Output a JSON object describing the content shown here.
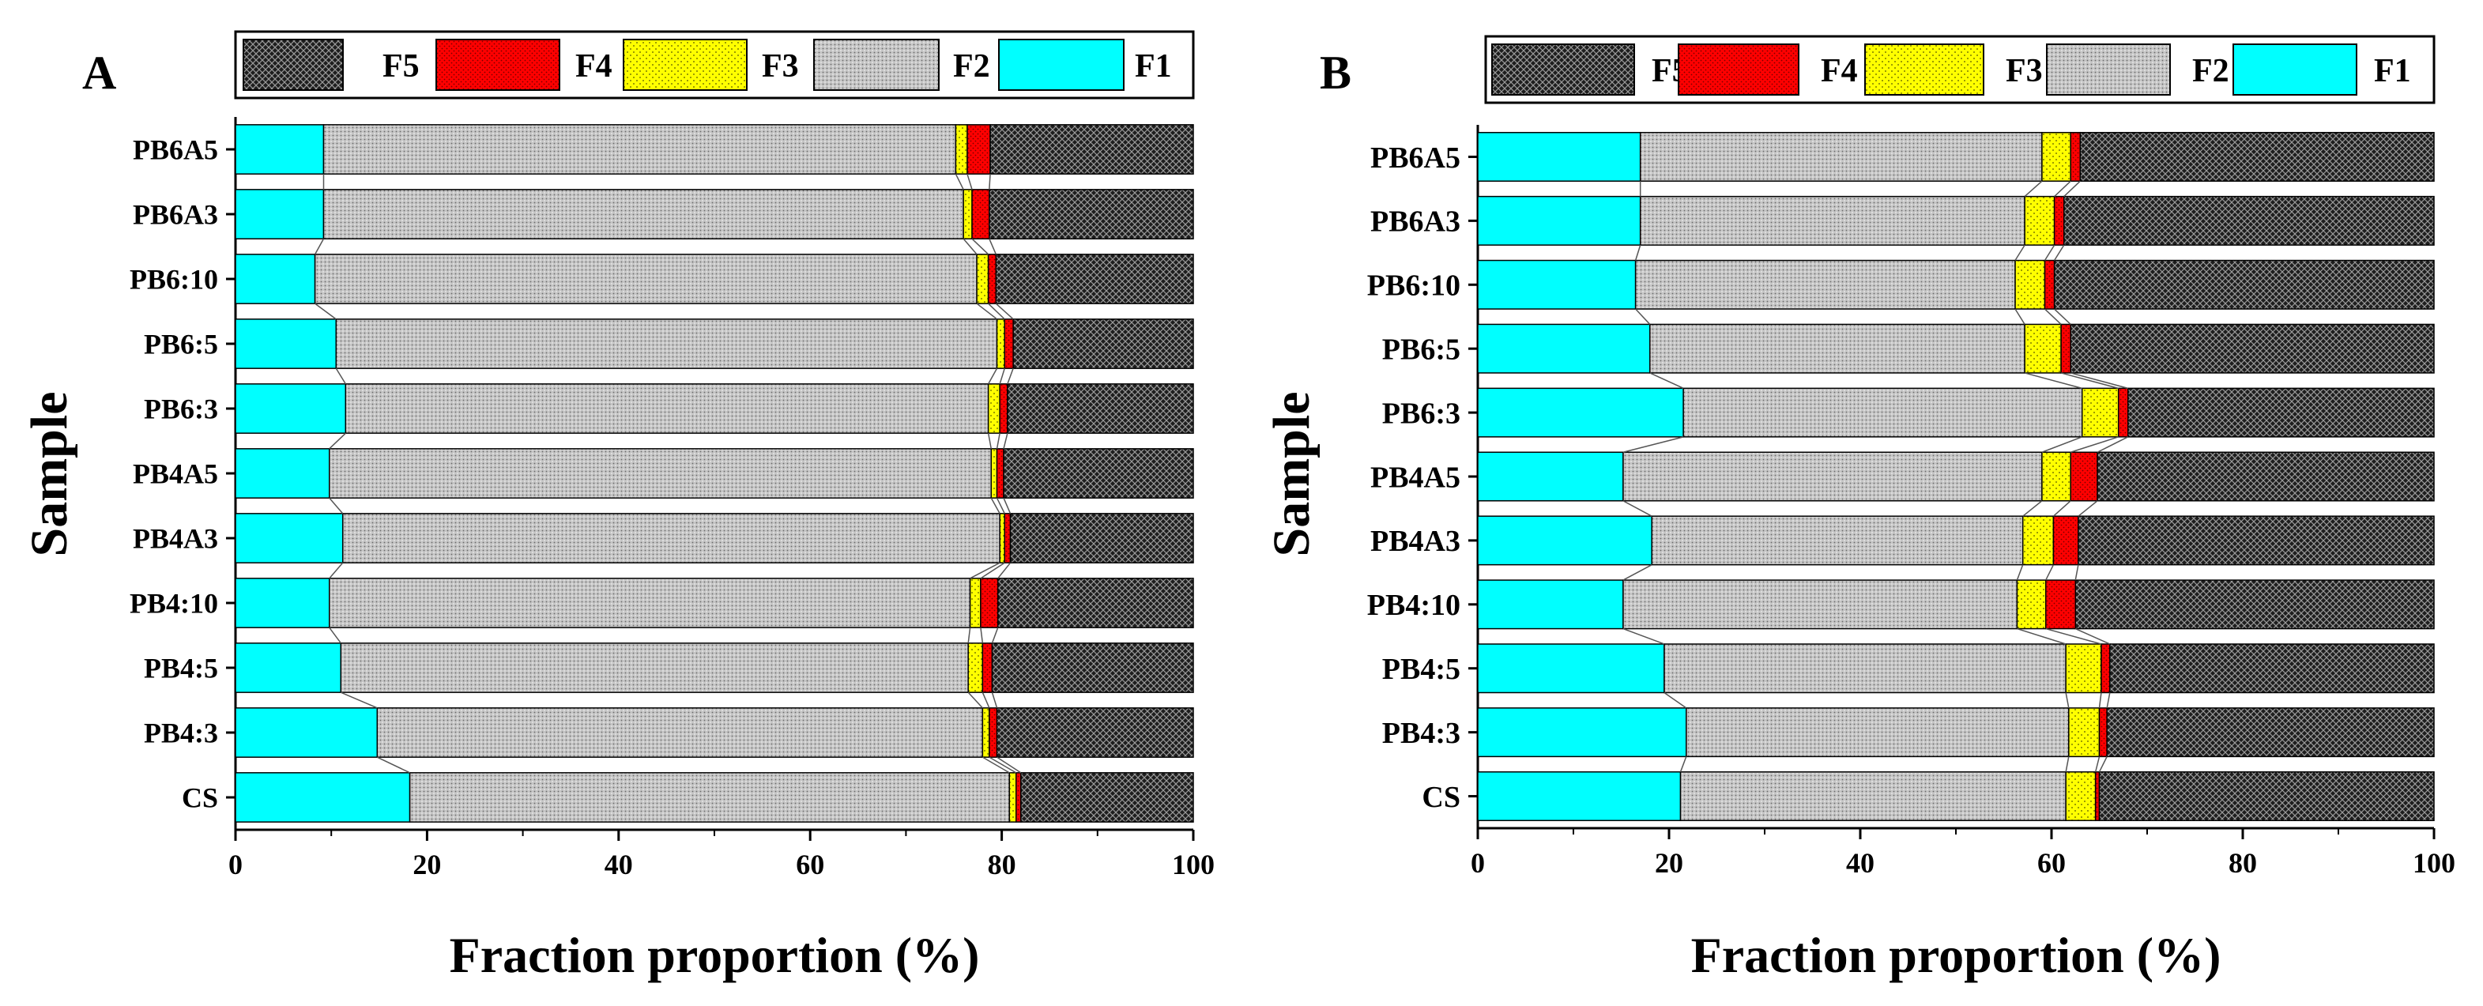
{
  "chart_data": [
    {
      "panel_label": "A",
      "type": "bar",
      "orientation": "horizontal",
      "stacked": true,
      "xlabel": "Fraction proportion (%)",
      "ylabel": "Sample",
      "xlim": [
        0,
        100
      ],
      "xticks": [
        0,
        20,
        40,
        60,
        80,
        100
      ],
      "legend": [
        "F5",
        "F4",
        "F3",
        "F2",
        "F1"
      ],
      "categories": [
        "PB6A5",
        "PB6A3",
        "PB6:10",
        "PB6:5",
        "PB6:3",
        "PB4A5",
        "PB4A3",
        "PB4:10",
        "PB4:5",
        "PB4:3",
        "CS"
      ],
      "series": [
        {
          "name": "F1",
          "values": [
            9.2,
            9.2,
            8.3,
            10.5,
            11.5,
            9.8,
            11.2,
            9.8,
            11.0,
            14.8,
            18.2
          ]
        },
        {
          "name": "F2",
          "values": [
            66.0,
            66.8,
            69.1,
            69.0,
            67.1,
            69.1,
            68.6,
            66.9,
            65.5,
            63.2,
            62.6
          ]
        },
        {
          "name": "F3",
          "values": [
            1.2,
            0.9,
            1.2,
            0.8,
            1.2,
            0.6,
            0.5,
            1.1,
            1.5,
            0.7,
            0.7
          ]
        },
        {
          "name": "F4",
          "values": [
            2.4,
            1.8,
            0.8,
            0.9,
            0.8,
            0.7,
            0.6,
            1.8,
            1.0,
            0.8,
            0.5
          ]
        },
        {
          "name": "F5",
          "values": [
            21.2,
            21.3,
            20.6,
            18.8,
            19.4,
            19.8,
            19.1,
            20.4,
            21.0,
            20.5,
            18.0
          ]
        }
      ]
    },
    {
      "panel_label": "B",
      "type": "bar",
      "orientation": "horizontal",
      "stacked": true,
      "xlabel": "Fraction proportion (%)",
      "ylabel": "Sample",
      "xlim": [
        0,
        100
      ],
      "xticks": [
        0,
        20,
        40,
        60,
        80,
        100
      ],
      "legend": [
        "F5",
        "F4",
        "F3",
        "F2",
        "F1"
      ],
      "categories": [
        "PB6A5",
        "PB6A3",
        "PB6:10",
        "PB6:5",
        "PB6:3",
        "PB4A5",
        "PB4A3",
        "PB4:10",
        "PB4:5",
        "PB4:3",
        "CS"
      ],
      "series": [
        {
          "name": "F1",
          "values": [
            17.0,
            17.0,
            16.5,
            18.0,
            21.5,
            15.2,
            18.2,
            15.2,
            19.5,
            21.8,
            21.2
          ]
        },
        {
          "name": "F2",
          "values": [
            42.0,
            40.2,
            39.7,
            39.2,
            41.7,
            43.8,
            38.8,
            41.2,
            42.0,
            40.0,
            40.3
          ]
        },
        {
          "name": "F3",
          "values": [
            3.0,
            3.1,
            3.1,
            3.8,
            3.8,
            3.0,
            3.2,
            3.0,
            3.7,
            3.2,
            3.1
          ]
        },
        {
          "name": "F4",
          "values": [
            1.0,
            1.0,
            1.0,
            1.0,
            1.0,
            2.8,
            2.6,
            3.1,
            0.9,
            0.8,
            0.4
          ]
        },
        {
          "name": "F5",
          "values": [
            37.0,
            38.7,
            39.7,
            38.0,
            32.0,
            35.2,
            37.2,
            37.5,
            33.9,
            34.2,
            35.0
          ]
        }
      ]
    }
  ],
  "colors": {
    "F1": "#00ffff",
    "F2": "#c8c8c8",
    "F3": "#ffff00",
    "F4": "#ff0000",
    "F5": "#202020"
  },
  "pattern_icons": {
    "F1": "solid-fill",
    "F2": "fine-dot-pattern",
    "F3": "sparse-dot-pattern",
    "F4": "red-dot-pattern",
    "F5": "crosshatch-pattern"
  }
}
